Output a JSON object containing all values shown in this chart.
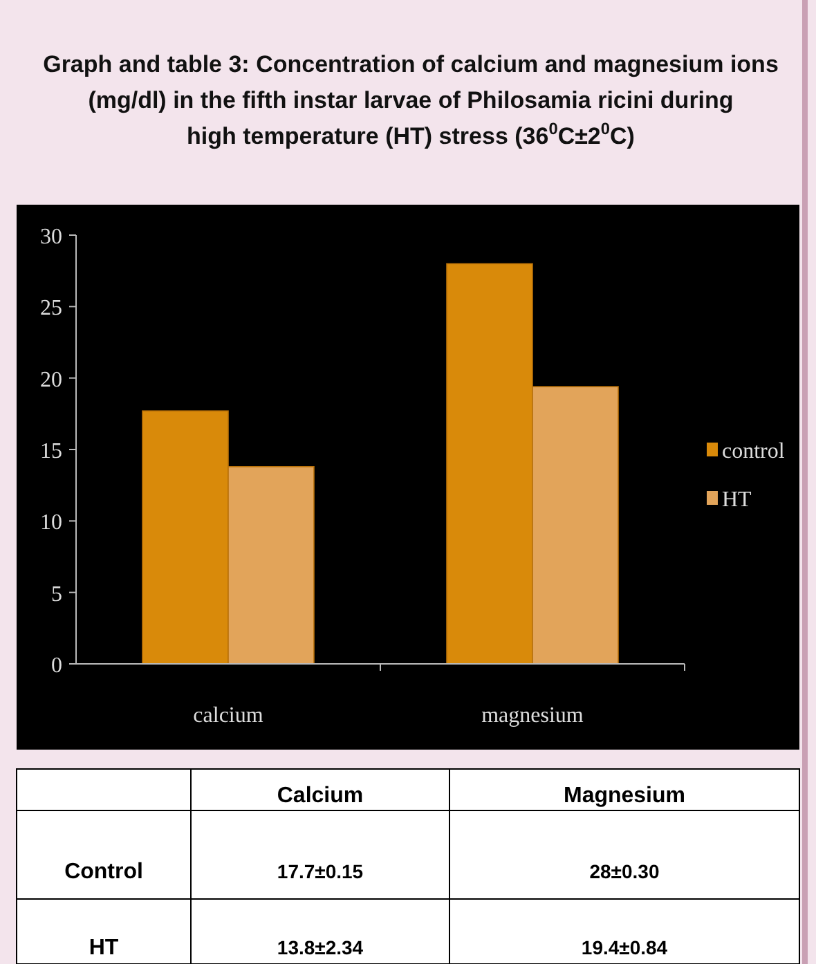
{
  "chart_data": {
    "type": "bar",
    "title": "Graph and table 3: Concentration of calcium and magnesium ions (mg/dl) in the fifth instar larvae of Philosamia ricini during high temperature (HT) stress (36$^{0}$C±2$^{0}$C)",
    "categories": [
      "calcium",
      "magnesium"
    ],
    "series": [
      {
        "name": "control",
        "color": "#d98a0a",
        "values": [
          17.7,
          28
        ],
        "value_labels": [
          "17.7±0.15",
          "28±0.30"
        ]
      },
      {
        "name": "HT",
        "color": "#e2a45a",
        "values": [
          13.8,
          19.4
        ],
        "value_labels": [
          "13.8±2.34",
          "19.4±0.84"
        ]
      }
    ],
    "ylim": [
      0,
      30
    ],
    "yticks": [
      0,
      5,
      10,
      15,
      20,
      25,
      30
    ],
    "grid": false,
    "legend": "right",
    "annotations": [
      "Calcium",
      "Magnesium",
      "Control",
      "HT"
    ]
  }
}
